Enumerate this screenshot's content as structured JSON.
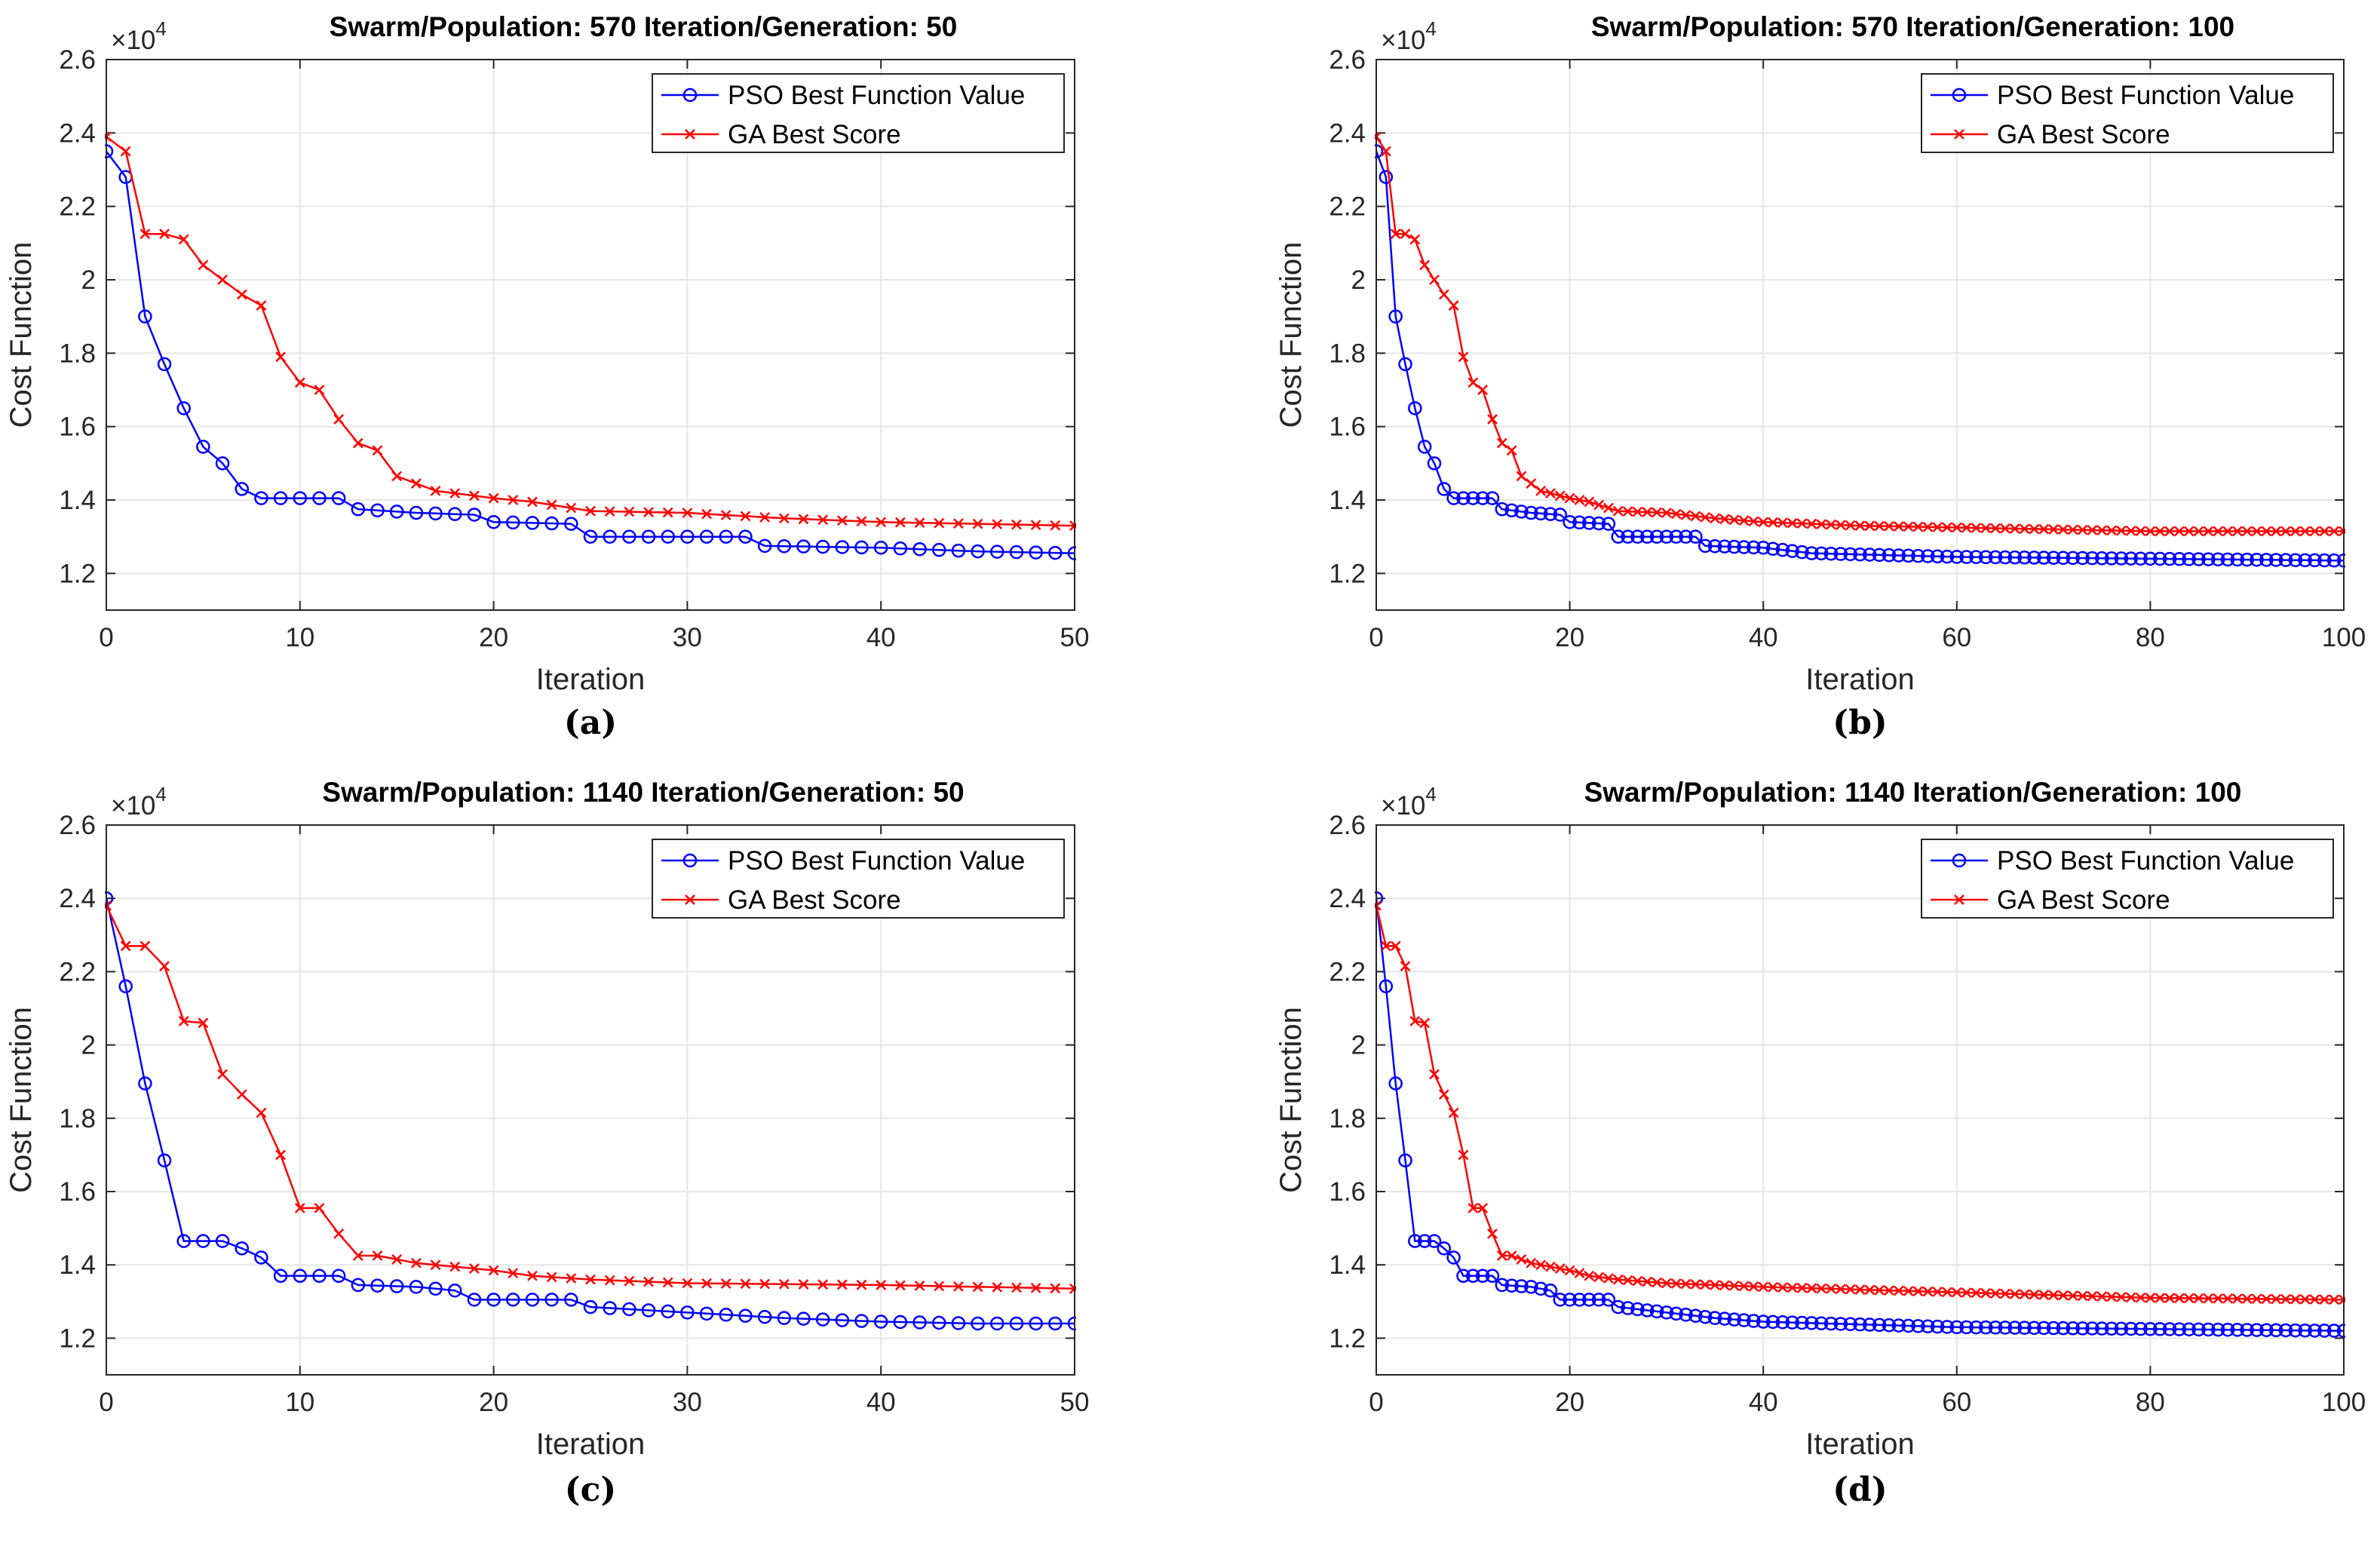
{
  "chart_data": [
    {
      "type": "line",
      "caption": "(a)",
      "title": "Swarm/Population: 570 Iteration/Generation: 50",
      "xlabel": "Iteration",
      "ylabel": "Cost Function",
      "y_exponent": "×10",
      "y_exponent_power": "4",
      "xlim": [
        0,
        50
      ],
      "ylim": [
        1.1,
        2.6
      ],
      "xticks": [
        0,
        10,
        20,
        30,
        40,
        50
      ],
      "xtick_labels": [
        "0",
        "10",
        "20",
        "30",
        "40",
        "50"
      ],
      "yticks": [
        1.2,
        1.4,
        1.6,
        1.8,
        2.0,
        2.2,
        2.4,
        2.6
      ],
      "ytick_labels": [
        "1.2",
        "1.4",
        "1.6",
        "1.8",
        "2",
        "2.2",
        "2.4",
        "2.6"
      ],
      "grid": true,
      "legend_position": "top-right",
      "series": [
        {
          "name": "PSO Best Function Value",
          "color": "#0000ff",
          "marker": "circle",
          "anchors": [
            [
              0,
              2.35
            ],
            [
              1,
              2.28
            ],
            [
              2,
              1.9
            ],
            [
              3,
              1.77
            ],
            [
              4,
              1.65
            ],
            [
              5,
              1.545
            ],
            [
              6,
              1.5
            ],
            [
              7,
              1.43
            ],
            [
              8,
              1.405
            ],
            [
              12,
              1.405
            ],
            [
              13,
              1.375
            ],
            [
              16,
              1.365
            ],
            [
              19,
              1.36
            ],
            [
              20,
              1.34
            ],
            [
              24,
              1.335
            ],
            [
              25,
              1.3
            ],
            [
              33,
              1.3
            ],
            [
              34,
              1.275
            ],
            [
              40,
              1.27
            ],
            [
              45,
              1.26
            ],
            [
              50,
              1.255
            ]
          ]
        },
        {
          "name": "GA Best Score",
          "color": "#ff0000",
          "marker": "x",
          "anchors": [
            [
              0,
              2.39
            ],
            [
              1,
              2.35
            ],
            [
              2,
              2.125
            ],
            [
              3,
              2.125
            ],
            [
              4,
              2.11
            ],
            [
              5,
              2.04
            ],
            [
              6,
              2.0
            ],
            [
              7,
              1.96
            ],
            [
              8,
              1.93
            ],
            [
              9,
              1.79
            ],
            [
              10,
              1.72
            ],
            [
              11,
              1.7
            ],
            [
              12,
              1.62
            ],
            [
              13,
              1.555
            ],
            [
              14,
              1.535
            ],
            [
              15,
              1.465
            ],
            [
              16,
              1.445
            ],
            [
              17,
              1.425
            ],
            [
              20,
              1.405
            ],
            [
              22,
              1.395
            ],
            [
              25,
              1.37
            ],
            [
              30,
              1.365
            ],
            [
              35,
              1.35
            ],
            [
              40,
              1.34
            ],
            [
              45,
              1.335
            ],
            [
              50,
              1.33
            ]
          ]
        }
      ]
    },
    {
      "type": "line",
      "caption": "(b)",
      "title": "Swarm/Population: 570 Iteration/Generation: 100",
      "xlabel": "Iteration",
      "ylabel": "Cost Function",
      "y_exponent": "×10",
      "y_exponent_power": "4",
      "xlim": [
        0,
        100
      ],
      "ylim": [
        1.1,
        2.6
      ],
      "xticks": [
        0,
        20,
        40,
        60,
        80,
        100
      ],
      "xtick_labels": [
        "0",
        "20",
        "40",
        "60",
        "80",
        "100"
      ],
      "yticks": [
        1.2,
        1.4,
        1.6,
        1.8,
        2.0,
        2.2,
        2.4,
        2.6
      ],
      "ytick_labels": [
        "1.2",
        "1.4",
        "1.6",
        "1.8",
        "2",
        "2.2",
        "2.4",
        "2.6"
      ],
      "grid": true,
      "legend_position": "top-right",
      "series": [
        {
          "name": "PSO Best Function Value",
          "color": "#0000ff",
          "marker": "circle",
          "anchors": [
            [
              0,
              2.35
            ],
            [
              1,
              2.28
            ],
            [
              2,
              1.9
            ],
            [
              3,
              1.77
            ],
            [
              4,
              1.65
            ],
            [
              5,
              1.545
            ],
            [
              6,
              1.5
            ],
            [
              7,
              1.43
            ],
            [
              8,
              1.405
            ],
            [
              12,
              1.405
            ],
            [
              13,
              1.375
            ],
            [
              16,
              1.365
            ],
            [
              19,
              1.36
            ],
            [
              20,
              1.34
            ],
            [
              24,
              1.335
            ],
            [
              25,
              1.3
            ],
            [
              33,
              1.3
            ],
            [
              34,
              1.275
            ],
            [
              40,
              1.27
            ],
            [
              45,
              1.255
            ],
            [
              60,
              1.245
            ],
            [
              80,
              1.24
            ],
            [
              100,
              1.235
            ]
          ]
        },
        {
          "name": "GA Best Score",
          "color": "#ff0000",
          "marker": "x",
          "anchors": [
            [
              0,
              2.39
            ],
            [
              1,
              2.35
            ],
            [
              2,
              2.125
            ],
            [
              3,
              2.125
            ],
            [
              4,
              2.11
            ],
            [
              5,
              2.04
            ],
            [
              6,
              2.0
            ],
            [
              7,
              1.96
            ],
            [
              8,
              1.93
            ],
            [
              9,
              1.79
            ],
            [
              10,
              1.72
            ],
            [
              11,
              1.7
            ],
            [
              12,
              1.62
            ],
            [
              13,
              1.555
            ],
            [
              14,
              1.535
            ],
            [
              15,
              1.465
            ],
            [
              16,
              1.445
            ],
            [
              17,
              1.425
            ],
            [
              20,
              1.405
            ],
            [
              22,
              1.395
            ],
            [
              25,
              1.37
            ],
            [
              30,
              1.365
            ],
            [
              35,
              1.35
            ],
            [
              40,
              1.34
            ],
            [
              50,
              1.33
            ],
            [
              60,
              1.325
            ],
            [
              80,
              1.315
            ],
            [
              100,
              1.315
            ]
          ]
        }
      ]
    },
    {
      "type": "line",
      "caption": "(c)",
      "title": "Swarm/Population: 1140 Iteration/Generation: 50",
      "xlabel": "Iteration",
      "ylabel": "Cost Function",
      "y_exponent": "×10",
      "y_exponent_power": "4",
      "xlim": [
        0,
        50
      ],
      "ylim": [
        1.1,
        2.6
      ],
      "xticks": [
        0,
        10,
        20,
        30,
        40,
        50
      ],
      "xtick_labels": [
        "0",
        "10",
        "20",
        "30",
        "40",
        "50"
      ],
      "yticks": [
        1.2,
        1.4,
        1.6,
        1.8,
        2.0,
        2.2,
        2.4,
        2.6
      ],
      "ytick_labels": [
        "1.2",
        "1.4",
        "1.6",
        "1.8",
        "2",
        "2.2",
        "2.4",
        "2.6"
      ],
      "grid": true,
      "legend_position": "top-right",
      "series": [
        {
          "name": "PSO Best Function Value",
          "color": "#0000ff",
          "marker": "circle",
          "anchors": [
            [
              0,
              2.4
            ],
            [
              1,
              2.16
            ],
            [
              2,
              1.895
            ],
            [
              3,
              1.685
            ],
            [
              4,
              1.465
            ],
            [
              6,
              1.465
            ],
            [
              7,
              1.445
            ],
            [
              8,
              1.42
            ],
            [
              9,
              1.37
            ],
            [
              12,
              1.37
            ],
            [
              13,
              1.345
            ],
            [
              16,
              1.34
            ],
            [
              18,
              1.33
            ],
            [
              19,
              1.305
            ],
            [
              24,
              1.305
            ],
            [
              25,
              1.285
            ],
            [
              30,
              1.27
            ],
            [
              35,
              1.255
            ],
            [
              40,
              1.245
            ],
            [
              45,
              1.24
            ],
            [
              50,
              1.24
            ]
          ]
        },
        {
          "name": "GA Best Score",
          "color": "#ff0000",
          "marker": "x",
          "anchors": [
            [
              0,
              2.38
            ],
            [
              1,
              2.27
            ],
            [
              2,
              2.27
            ],
            [
              3,
              2.215
            ],
            [
              4,
              2.065
            ],
            [
              5,
              2.06
            ],
            [
              6,
              1.92
            ],
            [
              7,
              1.865
            ],
            [
              8,
              1.815
            ],
            [
              9,
              1.7
            ],
            [
              10,
              1.555
            ],
            [
              11,
              1.555
            ],
            [
              12,
              1.485
            ],
            [
              13,
              1.425
            ],
            [
              14,
              1.425
            ],
            [
              16,
              1.405
            ],
            [
              20,
              1.385
            ],
            [
              22,
              1.37
            ],
            [
              25,
              1.36
            ],
            [
              30,
              1.35
            ],
            [
              40,
              1.345
            ],
            [
              50,
              1.335
            ]
          ]
        }
      ]
    },
    {
      "type": "line",
      "caption": "(d)",
      "title": "Swarm/Population: 1140 Iteration/Generation: 100",
      "xlabel": "Iteration",
      "ylabel": "Cost Function",
      "y_exponent": "×10",
      "y_exponent_power": "4",
      "xlim": [
        0,
        100
      ],
      "ylim": [
        1.1,
        2.6
      ],
      "xticks": [
        0,
        20,
        40,
        60,
        80,
        100
      ],
      "xtick_labels": [
        "0",
        "20",
        "40",
        "60",
        "80",
        "100"
      ],
      "yticks": [
        1.2,
        1.4,
        1.6,
        1.8,
        2.0,
        2.2,
        2.4,
        2.6
      ],
      "ytick_labels": [
        "1.2",
        "1.4",
        "1.6",
        "1.8",
        "2",
        "2.2",
        "2.4",
        "2.6"
      ],
      "grid": true,
      "legend_position": "top-right",
      "series": [
        {
          "name": "PSO Best Function Value",
          "color": "#0000ff",
          "marker": "circle",
          "anchors": [
            [
              0,
              2.4
            ],
            [
              1,
              2.16
            ],
            [
              2,
              1.895
            ],
            [
              3,
              1.685
            ],
            [
              4,
              1.465
            ],
            [
              6,
              1.465
            ],
            [
              7,
              1.445
            ],
            [
              8,
              1.42
            ],
            [
              9,
              1.37
            ],
            [
              12,
              1.37
            ],
            [
              13,
              1.345
            ],
            [
              16,
              1.34
            ],
            [
              18,
              1.33
            ],
            [
              19,
              1.305
            ],
            [
              24,
              1.305
            ],
            [
              25,
              1.285
            ],
            [
              30,
              1.27
            ],
            [
              35,
              1.255
            ],
            [
              40,
              1.245
            ],
            [
              60,
              1.23
            ],
            [
              80,
              1.225
            ],
            [
              100,
              1.22
            ]
          ]
        },
        {
          "name": "GA Best Score",
          "color": "#ff0000",
          "marker": "x",
          "anchors": [
            [
              0,
              2.38
            ],
            [
              1,
              2.27
            ],
            [
              2,
              2.27
            ],
            [
              3,
              2.215
            ],
            [
              4,
              2.065
            ],
            [
              5,
              2.06
            ],
            [
              6,
              1.92
            ],
            [
              7,
              1.865
            ],
            [
              8,
              1.815
            ],
            [
              9,
              1.7
            ],
            [
              10,
              1.555
            ],
            [
              11,
              1.555
            ],
            [
              12,
              1.485
            ],
            [
              13,
              1.425
            ],
            [
              14,
              1.425
            ],
            [
              16,
              1.405
            ],
            [
              20,
              1.385
            ],
            [
              22,
              1.37
            ],
            [
              25,
              1.36
            ],
            [
              30,
              1.35
            ],
            [
              40,
              1.34
            ],
            [
              60,
              1.325
            ],
            [
              80,
              1.31
            ],
            [
              100,
              1.305
            ]
          ]
        }
      ]
    }
  ]
}
